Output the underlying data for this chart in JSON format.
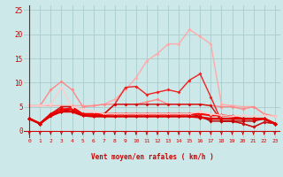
{
  "xlabel": "Vent moyen/en rafales ( km/h )",
  "xlim": [
    -0.5,
    23.5
  ],
  "ylim": [
    -1.5,
    26
  ],
  "yticks": [
    0,
    5,
    10,
    15,
    20,
    25
  ],
  "xticks": [
    0,
    1,
    2,
    3,
    4,
    5,
    6,
    7,
    8,
    9,
    10,
    11,
    12,
    13,
    14,
    15,
    16,
    17,
    18,
    19,
    20,
    21,
    22,
    23
  ],
  "bg_color": "#cce8e8",
  "grid_color": "#aacccc",
  "lines": [
    {
      "color": "#ffaaaa",
      "lw": 1.0,
      "marker": "D",
      "markersize": 2.0,
      "y": [
        5.2,
        5.2,
        5.2,
        5.2,
        5.2,
        5.2,
        5.2,
        5.5,
        6.5,
        8.5,
        11.0,
        14.5,
        16.0,
        18.0,
        18.0,
        21.0,
        19.5,
        18.0,
        5.5,
        5.2,
        5.0,
        5.0,
        3.5,
        3.0
      ]
    },
    {
      "color": "#ff8888",
      "lw": 1.0,
      "marker": "D",
      "markersize": 2.0,
      "y": [
        5.2,
        5.2,
        8.5,
        10.2,
        8.5,
        5.0,
        5.2,
        5.5,
        5.5,
        5.5,
        5.5,
        6.0,
        6.5,
        5.5,
        5.5,
        5.5,
        5.5,
        5.2,
        5.0,
        5.0,
        4.5,
        5.0,
        3.5,
        3.0
      ]
    },
    {
      "color": "#ee2222",
      "lw": 1.0,
      "marker": "D",
      "markersize": 2.0,
      "y": [
        2.5,
        1.5,
        3.5,
        4.0,
        5.0,
        3.5,
        3.5,
        3.5,
        5.5,
        9.0,
        9.2,
        7.5,
        8.0,
        8.5,
        8.0,
        10.5,
        11.8,
        7.0,
        2.0,
        2.0,
        1.5,
        0.8,
        1.8,
        1.5
      ]
    },
    {
      "color": "#cc1111",
      "lw": 1.0,
      "marker": "D",
      "markersize": 2.0,
      "y": [
        2.5,
        1.5,
        3.5,
        5.0,
        5.0,
        3.5,
        3.5,
        3.5,
        5.5,
        5.5,
        5.5,
        5.5,
        5.5,
        5.5,
        5.5,
        5.5,
        5.5,
        5.2,
        2.0,
        2.0,
        1.5,
        0.8,
        1.8,
        1.5
      ]
    },
    {
      "color": "#bb0000",
      "lw": 1.0,
      "marker": "D",
      "markersize": 2.0,
      "y": [
        2.5,
        1.5,
        3.0,
        4.0,
        4.5,
        3.2,
        3.2,
        3.2,
        3.5,
        3.5,
        3.5,
        3.5,
        3.5,
        3.5,
        3.5,
        3.5,
        3.0,
        2.0,
        2.0,
        2.0,
        2.0,
        2.0,
        2.5,
        1.5
      ]
    },
    {
      "color": "#ff0000",
      "lw": 1.5,
      "marker": "D",
      "markersize": 2.5,
      "y": [
        2.5,
        1.5,
        3.5,
        4.5,
        4.5,
        3.5,
        3.5,
        3.5,
        3.5,
        3.5,
        3.5,
        3.5,
        3.5,
        3.5,
        3.5,
        3.5,
        3.5,
        3.2,
        3.2,
        3.0,
        2.5,
        2.5,
        2.5,
        1.5
      ]
    },
    {
      "color": "#ffcccc",
      "lw": 1.0,
      "marker": "D",
      "markersize": 2.0,
      "y": [
        5.2,
        5.2,
        5.5,
        9.0,
        5.0,
        4.5,
        4.0,
        3.5,
        3.5,
        3.5,
        3.5,
        3.5,
        3.5,
        3.5,
        3.5,
        3.5,
        4.0,
        3.5,
        3.2,
        3.0,
        3.2,
        3.0,
        3.2,
        3.0
      ]
    },
    {
      "color": "#dd0000",
      "lw": 1.8,
      "marker": "D",
      "markersize": 2.5,
      "y": [
        2.5,
        1.5,
        3.2,
        4.0,
        4.0,
        3.2,
        3.0,
        3.0,
        3.0,
        3.0,
        3.0,
        3.0,
        3.0,
        3.0,
        3.0,
        3.0,
        2.8,
        2.5,
        2.5,
        2.5,
        2.5,
        2.5,
        2.5,
        1.5
      ]
    }
  ],
  "arrow_color": "#cc0000",
  "tick_color": "#cc0000",
  "xlabel_color": "#cc0000",
  "axis_line_color": "#cc0000"
}
